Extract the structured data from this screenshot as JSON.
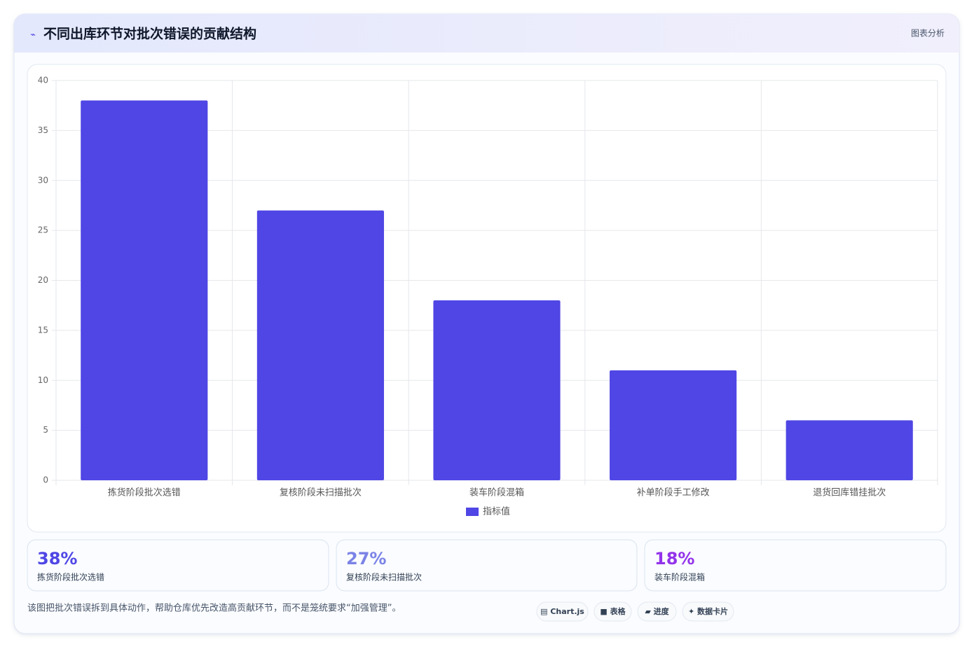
{
  "header": {
    "icon": "⌁",
    "title": "不同出库环节对批次错误的贡献结构",
    "badge": "图表分析"
  },
  "chart_data": {
    "type": "bar",
    "categories": [
      "拣货阶段批次选错",
      "复核阶段未扫描批次",
      "装车阶段混箱",
      "补单阶段手工修改",
      "退货回库错挂批次"
    ],
    "series": [
      {
        "name": "指标值",
        "color": "#4f46e5",
        "values": [
          38,
          27,
          18,
          11,
          6
        ]
      }
    ],
    "ylim": [
      0,
      40
    ],
    "yticks": [
      0,
      5,
      10,
      15,
      20,
      25,
      30,
      35,
      40
    ],
    "grid": true,
    "legend": "bottom"
  },
  "stats": [
    {
      "value": "38%",
      "label": "拣货阶段批次选错",
      "color": "#4f46e5"
    },
    {
      "value": "27%",
      "label": "复核阶段未扫描批次",
      "color": "#7b83e6"
    },
    {
      "value": "18%",
      "label": "装车阶段混箱",
      "color": "#9333ea"
    }
  ],
  "footer": {
    "note": "该图把批次错误拆到具体动作，帮助仓库优先改造高贡献环节，而不是笼统要求“加强管理”。",
    "tags": [
      "▤ Chart.js",
      "■ 表格",
      "▰ 进度",
      "✦ 数据卡片"
    ]
  }
}
